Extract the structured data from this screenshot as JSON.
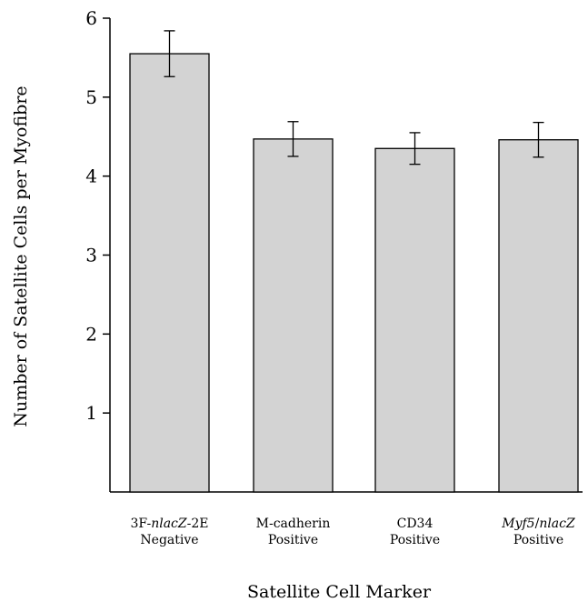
{
  "chart_data": {
    "type": "bar",
    "title": "",
    "xlabel": "Satellite Cell Marker",
    "ylabel": "Number of Satellite Cells per Myofibre",
    "ylim": [
      0,
      6
    ],
    "yticks": [
      "1",
      "2",
      "3",
      "4",
      "5",
      "6"
    ],
    "categories": [
      {
        "line1_parts": [
          {
            "text": "3F-",
            "italic": false
          },
          {
            "text": "nlacZ",
            "italic": true
          },
          {
            "text": "-2E",
            "italic": false
          }
        ],
        "line2": "Negative"
      },
      {
        "line1_parts": [
          {
            "text": "M-cadherin",
            "italic": false
          }
        ],
        "line2": "Positive"
      },
      {
        "line1_parts": [
          {
            "text": "CD34",
            "italic": false
          }
        ],
        "line2": "Positive"
      },
      {
        "line1_parts": [
          {
            "text": "Myf5",
            "italic": true
          },
          {
            "text": "/",
            "italic": false
          },
          {
            "text": "nlacZ",
            "italic": true
          }
        ],
        "line2": "Positive"
      }
    ],
    "values": [
      5.55,
      4.47,
      4.35,
      4.46
    ],
    "errors": [
      0.29,
      0.22,
      0.2,
      0.22
    ],
    "bar_color": "#d3d3d3",
    "grid": false
  }
}
